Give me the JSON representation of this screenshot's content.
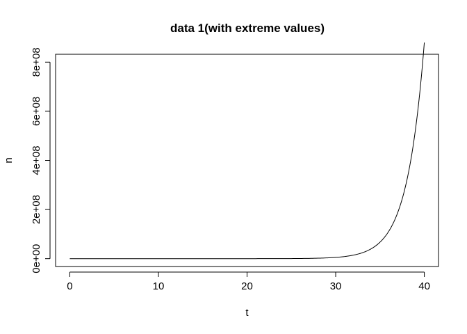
{
  "chart_data": {
    "type": "line",
    "title": "data 1(with extreme values)",
    "xlabel": "t",
    "ylabel": "n",
    "xlim": [
      -1.6,
      41.6
    ],
    "ylim": [
      -32000000,
      832000000
    ],
    "xticks": [
      0,
      10,
      20,
      30,
      40
    ],
    "xtick_labels": [
      "0",
      "10",
      "20",
      "30",
      "40"
    ],
    "yticks": [
      0,
      200000000,
      400000000,
      600000000,
      800000000
    ],
    "ytick_labels": [
      "0e+00",
      "2e+08",
      "4e+08",
      "6e+08",
      "8e+08"
    ],
    "grid": false,
    "legend": "none",
    "line_color": "#000000",
    "series": [
      {
        "x": [
          0,
          2,
          4,
          6,
          8,
          10,
          12,
          14,
          16,
          18,
          20,
          22,
          24,
          26,
          28,
          29,
          30,
          31,
          32,
          33,
          34,
          35,
          36,
          37,
          38,
          39,
          40
        ],
        "y": [
          1,
          2.8,
          7.8,
          21.9,
          61.3,
          171.8,
          481.2,
          1348,
          3775,
          10572,
          29611,
          82936,
          232291,
          650610,
          1822253,
          3049647,
          5103750,
          8541418,
          14294641,
          23923156,
          40037009,
          67004795,
          112137129,
          187669226,
          314077012,
          525626390,
          879663800
        ]
      }
    ]
  }
}
